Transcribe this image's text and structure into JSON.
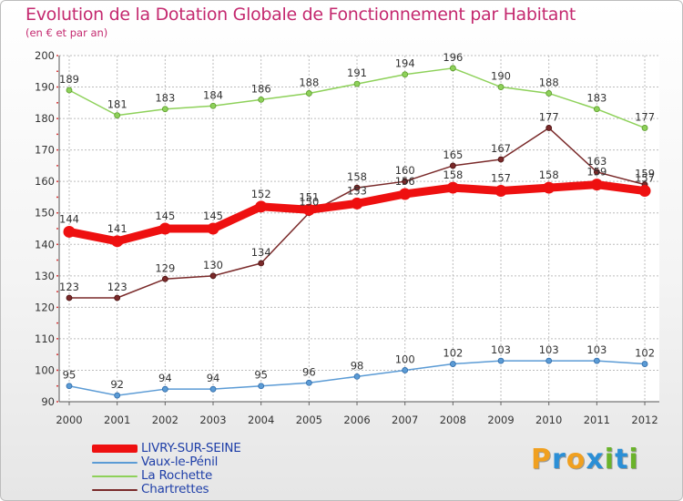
{
  "title": "Evolution de la Dotation Globale de Fonctionnement par Habitant",
  "subtitle": "(en € et par an)",
  "brand": {
    "letters": [
      "P",
      "r",
      "o",
      "x",
      "i",
      "t",
      "i"
    ],
    "colors": [
      "#f0a020",
      "#2b8fd6",
      "#f0a020",
      "#2b8fd6",
      "#6ab32a",
      "#2b8fd6",
      "#6ab32a"
    ]
  },
  "chart_data": {
    "type": "line",
    "title": "Evolution de la Dotation Globale de Fonctionnement par Habitant",
    "subtitle": "(en € et par an)",
    "xlabel": "",
    "ylabel": "",
    "x": [
      "2000",
      "2001",
      "2002",
      "2003",
      "2004",
      "2005",
      "2006",
      "2007",
      "2008",
      "2009",
      "2010",
      "2011",
      "2012"
    ],
    "ylim": [
      90,
      200
    ],
    "yticks": [
      90,
      100,
      110,
      120,
      130,
      140,
      150,
      160,
      170,
      180,
      190,
      200
    ],
    "grid": true,
    "legend_position": "bottom-left",
    "series": [
      {
        "name": "LIVRY-SUR-SEINE",
        "color": "#ee1010",
        "values": [
          144,
          141,
          145,
          145,
          152,
          151,
          153,
          156,
          158,
          157,
          158,
          159,
          157
        ],
        "labels": [
          "144",
          "141",
          "145",
          "145",
          "152",
          "151",
          "153",
          "156",
          "158",
          "157",
          "158",
          "159",
          "157"
        ]
      },
      {
        "name": "Vaux-le-Pénil",
        "color": "#5b9bd5",
        "values": [
          95,
          92,
          94,
          94,
          95,
          96,
          98,
          100,
          102,
          103,
          103,
          103,
          102
        ],
        "labels": [
          "95",
          "92",
          "94",
          "94",
          "95",
          "96",
          "98",
          "100",
          "102",
          "103",
          "103",
          "103",
          "102"
        ]
      },
      {
        "name": "La Rochette",
        "color": "#8ed15a",
        "values": [
          189,
          181,
          183,
          184,
          186,
          188,
          191,
          194,
          196,
          190,
          188,
          183,
          177
        ],
        "labels": [
          "189",
          "181",
          "183",
          "184",
          "186",
          "188",
          "191",
          "194",
          "196",
          "190",
          "188",
          "183",
          "177"
        ]
      },
      {
        "name": "Chartrettes",
        "color": "#7a2a2a",
        "values": [
          123,
          123,
          129,
          130,
          134,
          150,
          158,
          160,
          165,
          167,
          177,
          163,
          159
        ],
        "labels": [
          "123",
          "123",
          "129",
          "130",
          "134",
          "150",
          "158",
          "160",
          "165",
          "167",
          "177",
          "163",
          "159"
        ]
      }
    ]
  }
}
